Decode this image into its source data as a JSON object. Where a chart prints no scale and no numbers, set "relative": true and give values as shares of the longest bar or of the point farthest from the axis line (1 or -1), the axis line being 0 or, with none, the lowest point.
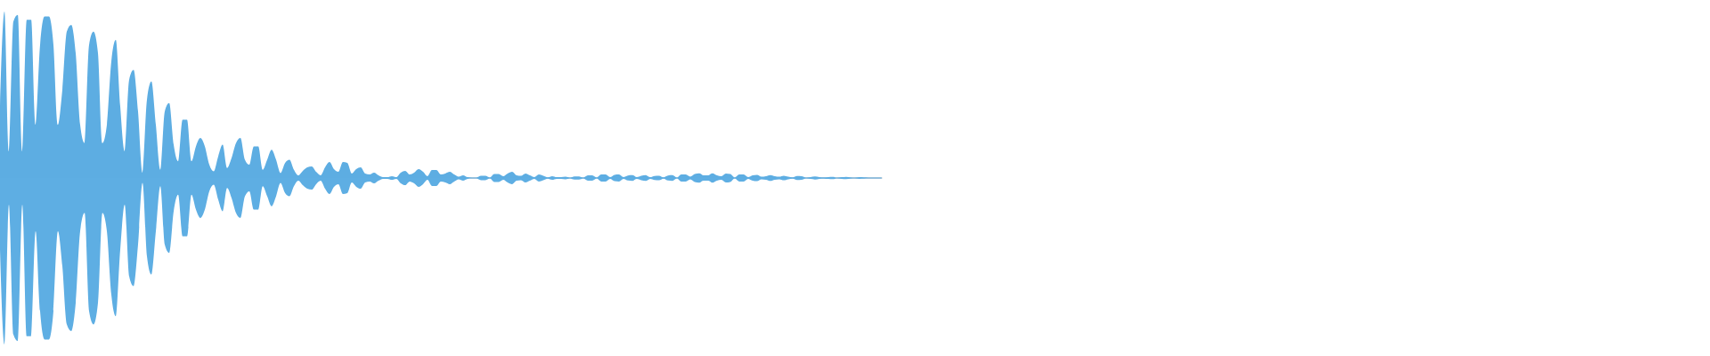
{
  "chart_data": {
    "type": "area",
    "relative": true,
    "categories": [
      null,
      null,
      null,
      null,
      null,
      null,
      null,
      null,
      null,
      null,
      null,
      null,
      null,
      null,
      null,
      null,
      null,
      null,
      null,
      null,
      null,
      null,
      null,
      null,
      null,
      null,
      null,
      null,
      null,
      null,
      null,
      null,
      null,
      null,
      null,
      null,
      null,
      null,
      null,
      null,
      null,
      null,
      null,
      null,
      null,
      null,
      null,
      null,
      null,
      null,
      null,
      null,
      null,
      null,
      null,
      null,
      null,
      null,
      null,
      null,
      null,
      null,
      null,
      null,
      null,
      null,
      null,
      null,
      null,
      null,
      null,
      null,
      null,
      null,
      null,
      null,
      null,
      null,
      null,
      null,
      null,
      null,
      null,
      null,
      null,
      null,
      null,
      null,
      null,
      null,
      null,
      null,
      null,
      null,
      null,
      null,
      null,
      null,
      null,
      null,
      null,
      null,
      null,
      null,
      null,
      null,
      null,
      null,
      null,
      null,
      null,
      null,
      null,
      null,
      null,
      null,
      null,
      null,
      null,
      null,
      null,
      null,
      null,
      null,
      null,
      null,
      null,
      null,
      null,
      null,
      null,
      null,
      null,
      null,
      null,
      null,
      null,
      null,
      null,
      null,
      null,
      null,
      null,
      null,
      null,
      null,
      null,
      null,
      null,
      null,
      null,
      null,
      null,
      null,
      null,
      null,
      null,
      null,
      null,
      null,
      null,
      null,
      null,
      null,
      null,
      null,
      null,
      null,
      null,
      null,
      null,
      null,
      null,
      null,
      null,
      null,
      null,
      null,
      null,
      null,
      null,
      null,
      null,
      null,
      null,
      null,
      null,
      null,
      null,
      null,
      null,
      null,
      null,
      null,
      null,
      null,
      null,
      null,
      null
    ],
    "series": [
      {
        "color": "#5dade2",
        "values": [
          0.43,
          1,
          0.16,
          0.94,
          0.98,
          0.16,
          0.95,
          0.95,
          0.32,
          0.8,
          0.97,
          0.97,
          0.8,
          0.32,
          0.53,
          0.88,
          0.92,
          0.75,
          0.32,
          0.21,
          0.8,
          0.88,
          0.75,
          0.21,
          0.32,
          0.7,
          0.83,
          0.43,
          0.16,
          0.59,
          0.65,
          0.4,
          0.03,
          0.47,
          0.58,
          0.32,
          0.05,
          0.4,
          0.45,
          0.2,
          0.1,
          0.35,
          0.35,
          0.1,
          0.19,
          0.24,
          0.19,
          0.08,
          0.04,
          0.13,
          0.2,
          0.06,
          0.12,
          0.21,
          0.24,
          0.11,
          0.08,
          0.19,
          0.19,
          0.05,
          0.11,
          0.17,
          0.11,
          0.03,
          0.09,
          0.11,
          0.05,
          0.016,
          0.043,
          0.064,
          0.07,
          0.037,
          0.016,
          0.064,
          0.096,
          0.053,
          0.037,
          0.096,
          0.091,
          0.027,
          0.053,
          0.064,
          0.027,
          0.021,
          0.032,
          0.016,
          0.005,
          0.005,
          0.011,
          0.005,
          0.032,
          0.043,
          0.021,
          0.032,
          0.053,
          0.037,
          0.011,
          0.048,
          0.048,
          0.021,
          0.027,
          0.037,
          0.021,
          0.008,
          0.016,
          0.005,
          0.003,
          0.003,
          0.013,
          0.013,
          0.003,
          0.024,
          0.024,
          0.011,
          0.027,
          0.037,
          0.016,
          0.013,
          0.027,
          0.016,
          0.005,
          0.021,
          0.013,
          0.004,
          0.011,
          0.005,
          0.006,
          0.008,
          0.003,
          0.01,
          0.01,
          0.003,
          0.016,
          0.016,
          0.003,
          0.021,
          0.021,
          0.005,
          0.019,
          0.021,
          0.005,
          0.015,
          0.017,
          0.005,
          0.013,
          0.018,
          0.005,
          0.012,
          0.014,
          0.004,
          0.015,
          0.017,
          0.003,
          0.021,
          0.021,
          0.008,
          0.024,
          0.028,
          0.016,
          0.016,
          0.028,
          0.016,
          0.011,
          0.027,
          0.024,
          0.003,
          0.021,
          0.021,
          0.005,
          0.016,
          0.019,
          0.008,
          0.011,
          0.018,
          0.011,
          0.008,
          0.014,
          0.008,
          0.004,
          0.012,
          0.011,
          0.003,
          0.006,
          0.009,
          0.005,
          0.004,
          0.006,
          0.007,
          0.003,
          0.005,
          0.007,
          0.004,
          0.003,
          0.005,
          0.004,
          0.003,
          0.003,
          0.003,
          0.003
        ]
      },
      {
        "color": "#5eaee3",
        "values": [
          -0.43,
          -1,
          -0.16,
          -0.94,
          -0.98,
          -0.16,
          -0.95,
          -0.95,
          -0.32,
          -0.8,
          -0.97,
          -0.97,
          -0.8,
          -0.32,
          -0.53,
          -0.88,
          -0.92,
          -0.75,
          -0.32,
          -0.21,
          -0.8,
          -0.88,
          -0.75,
          -0.21,
          -0.32,
          -0.7,
          -0.83,
          -0.43,
          -0.16,
          -0.59,
          -0.65,
          -0.4,
          -0.03,
          -0.47,
          -0.58,
          -0.32,
          -0.05,
          -0.4,
          -0.45,
          -0.2,
          -0.1,
          -0.35,
          -0.35,
          -0.1,
          -0.19,
          -0.24,
          -0.19,
          -0.08,
          -0.04,
          -0.13,
          -0.2,
          -0.06,
          -0.12,
          -0.21,
          -0.24,
          -0.11,
          -0.08,
          -0.19,
          -0.19,
          -0.05,
          -0.11,
          -0.17,
          -0.11,
          -0.03,
          -0.09,
          -0.11,
          -0.05,
          -0.016,
          -0.043,
          -0.064,
          -0.07,
          -0.037,
          -0.016,
          -0.064,
          -0.096,
          -0.053,
          -0.037,
          -0.096,
          -0.091,
          -0.027,
          -0.053,
          -0.064,
          -0.027,
          -0.021,
          -0.032,
          -0.016,
          -0.005,
          -0.005,
          -0.011,
          -0.005,
          -0.032,
          -0.043,
          -0.021,
          -0.032,
          -0.053,
          -0.037,
          -0.011,
          -0.048,
          -0.048,
          -0.021,
          -0.027,
          -0.037,
          -0.021,
          -0.008,
          -0.016,
          -0.005,
          -0.003,
          -0.003,
          -0.013,
          -0.013,
          -0.003,
          -0.024,
          -0.024,
          -0.011,
          -0.027,
          -0.037,
          -0.016,
          -0.013,
          -0.027,
          -0.016,
          -0.005,
          -0.021,
          -0.013,
          -0.004,
          -0.011,
          -0.005,
          -0.006,
          -0.008,
          -0.003,
          -0.01,
          -0.01,
          -0.003,
          -0.016,
          -0.016,
          -0.003,
          -0.021,
          -0.021,
          -0.005,
          -0.019,
          -0.021,
          -0.005,
          -0.015,
          -0.017,
          -0.005,
          -0.013,
          -0.018,
          -0.005,
          -0.012,
          -0.014,
          -0.004,
          -0.015,
          -0.017,
          -0.003,
          -0.021,
          -0.021,
          -0.008,
          -0.024,
          -0.028,
          -0.016,
          -0.016,
          -0.028,
          -0.016,
          -0.011,
          -0.027,
          -0.024,
          -0.003,
          -0.021,
          -0.021,
          -0.005,
          -0.016,
          -0.019,
          -0.008,
          -0.011,
          -0.018,
          -0.011,
          -0.008,
          -0.014,
          -0.008,
          -0.004,
          -0.012,
          -0.011,
          -0.003,
          -0.006,
          -0.009,
          -0.005,
          -0.004,
          -0.006,
          -0.007,
          -0.003,
          -0.005,
          -0.007,
          -0.004,
          -0.003,
          -0.005,
          -0.004,
          -0.003,
          -0.003,
          -0.003,
          -0.003
        ]
      }
    ]
  }
}
